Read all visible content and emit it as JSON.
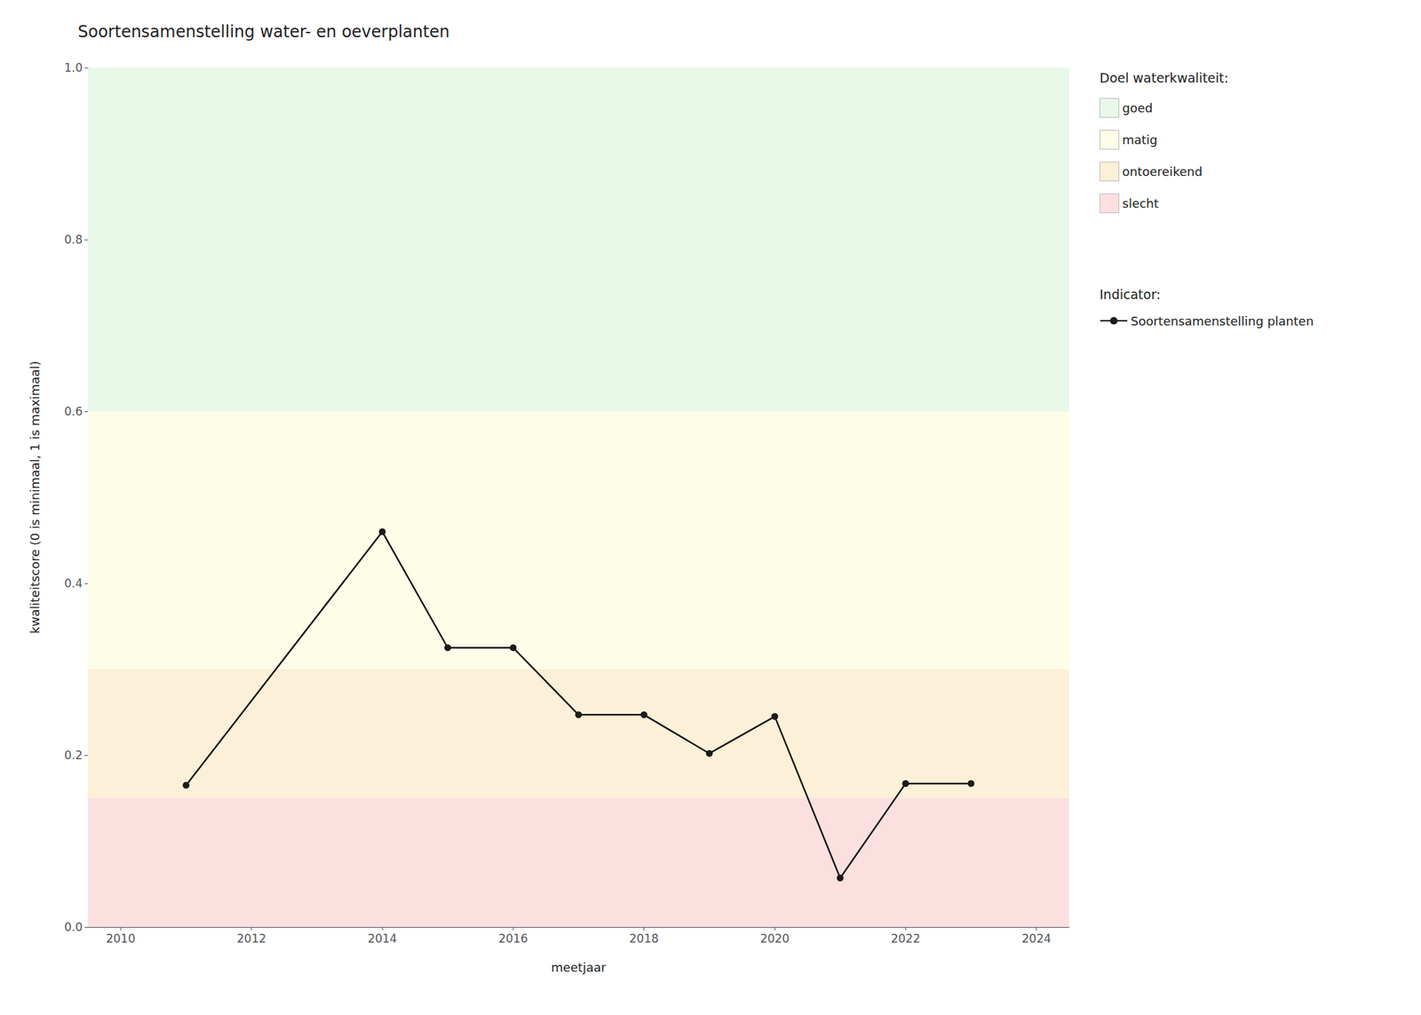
{
  "chart_data": {
    "type": "line",
    "title": "Soortensamenstelling water- en oeverplanten",
    "xlabel": "meetjaar",
    "ylabel": "kwaliteitscore (0 is minimaal, 1 is maximaal)",
    "x": [
      2011,
      2014,
      2015,
      2016,
      2017,
      2018,
      2019,
      2020,
      2021,
      2022,
      2023
    ],
    "series": [
      {
        "name": "Soortensamenstelling planten",
        "color": "#1a1a1a",
        "marker": "circle",
        "values": [
          0.165,
          0.46,
          0.325,
          0.325,
          0.247,
          0.247,
          0.202,
          0.245,
          0.057,
          0.167,
          0.167
        ]
      }
    ],
    "xlim": [
      2009.5,
      2024.5
    ],
    "xticks": [
      2010,
      2012,
      2014,
      2016,
      2018,
      2020,
      2022,
      2024
    ],
    "ylim": [
      0,
      1.0
    ],
    "yticks": [
      {
        "value": 0,
        "label": "0.0"
      },
      0.2,
      0.4,
      0.6,
      0.8,
      {
        "value": 1.0,
        "label": "1.0"
      }
    ],
    "bands": [
      {
        "ymin": 0.6,
        "ymax": 1.0,
        "color": "#e8f8e8",
        "label": "goed"
      },
      {
        "ymin": 0.3,
        "ymax": 0.6,
        "color": "#fdfde8",
        "label": "matig"
      },
      {
        "ymin": 0.15,
        "ymax": 0.3,
        "color": "#fdf0d8",
        "label": "ontoereikend"
      },
      {
        "ymin": 0.0,
        "ymax": 0.15,
        "color": "#fce0e0",
        "label": "slecht"
      }
    ],
    "legend_titles": [
      "Doel waterkwaliteit:",
      "Indicator:"
    ],
    "legend": "right",
    "grid": true
  }
}
